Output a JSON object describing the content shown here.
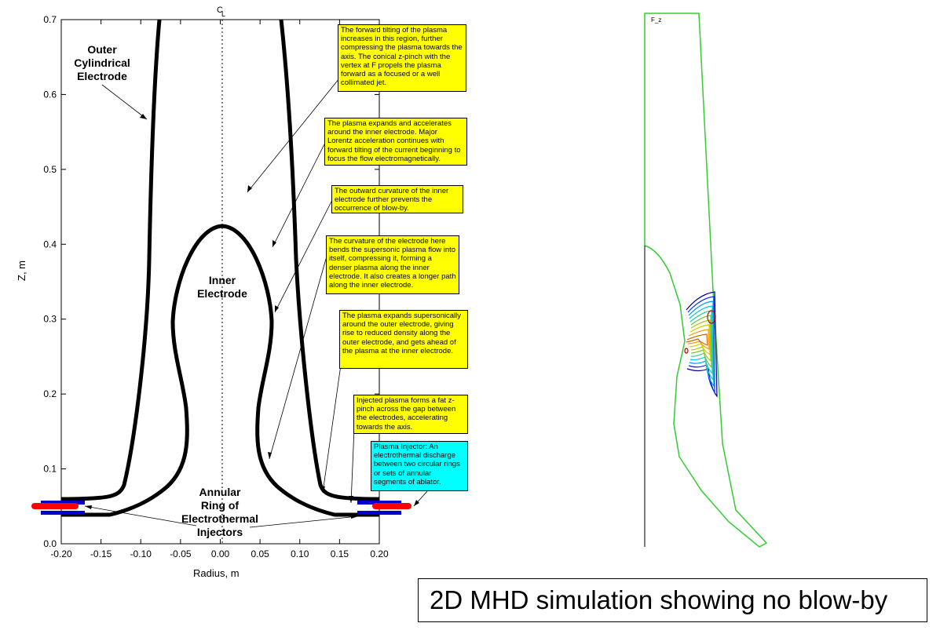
{
  "plot": {
    "xlabel": "Radius, m",
    "ylabel": "Z, m",
    "centerline_label": "C",
    "centerline_sub": "L",
    "x_ticks": [
      "-0.20",
      "-0.15",
      "-0.10",
      "-0.05",
      "0.00",
      "0.05",
      "0.10",
      "0.15",
      "0.20"
    ],
    "y_ticks": [
      "0.0",
      "0.1",
      "0.2",
      "0.3",
      "0.4",
      "0.5",
      "0.6",
      "0.7"
    ],
    "xlim": [
      -0.2,
      0.2
    ],
    "ylim": [
      0.0,
      0.7
    ]
  },
  "labels": {
    "outer_electrode": [
      "Outer",
      "Cylindrical",
      "Electrode"
    ],
    "inner_electrode": [
      "Inner",
      "Electrode"
    ],
    "injectors": [
      "Annular",
      "Ring of",
      "Electrothermal",
      "Injectors"
    ]
  },
  "notes": [
    "The forward tilting of the plasma increases in this region, further compressing the plasma towards the axis. The conical z-pinch with the vertex at F propels the plasma forward as a focused or a well collimated jet.",
    "The plasma expands and accelerates around the inner electrode. Major Lorentz acceleration continues with forward tilting of the current beginning to focus the flow electromagnetically.",
    "The outward curvature of the inner electrode further prevents the occurrence of blow-by.",
    "The curvature of the electrode here bends the supersonic plasma flow into itself, compressing it, forming a denser plasma along the inner electrode. It also creates a longer path along the inner electrode.",
    "The plasma expands supersonically around the outer electrode, giving rise to reduced density along the outer electrode, and gets ahead of the plasma at the inner electrode.",
    "Injected plasma forms a fat z-pinch across the gap between the electrodes, accelerating towards the axis.",
    "Plasma Injector: An electrothermal discharge between two circular rings or sets of annular segments of ablator."
  ],
  "simulation": {
    "corner_label": "F_z"
  },
  "caption": "2D MHD simulation showing no blow-by",
  "colors": {
    "note_yellow": "#ffff00",
    "note_cyan": "#00ffff",
    "electrode": "#000000",
    "injector_red": "#ff0000",
    "injector_blue": "#0000cc",
    "boundary_green": "#33cc33"
  }
}
